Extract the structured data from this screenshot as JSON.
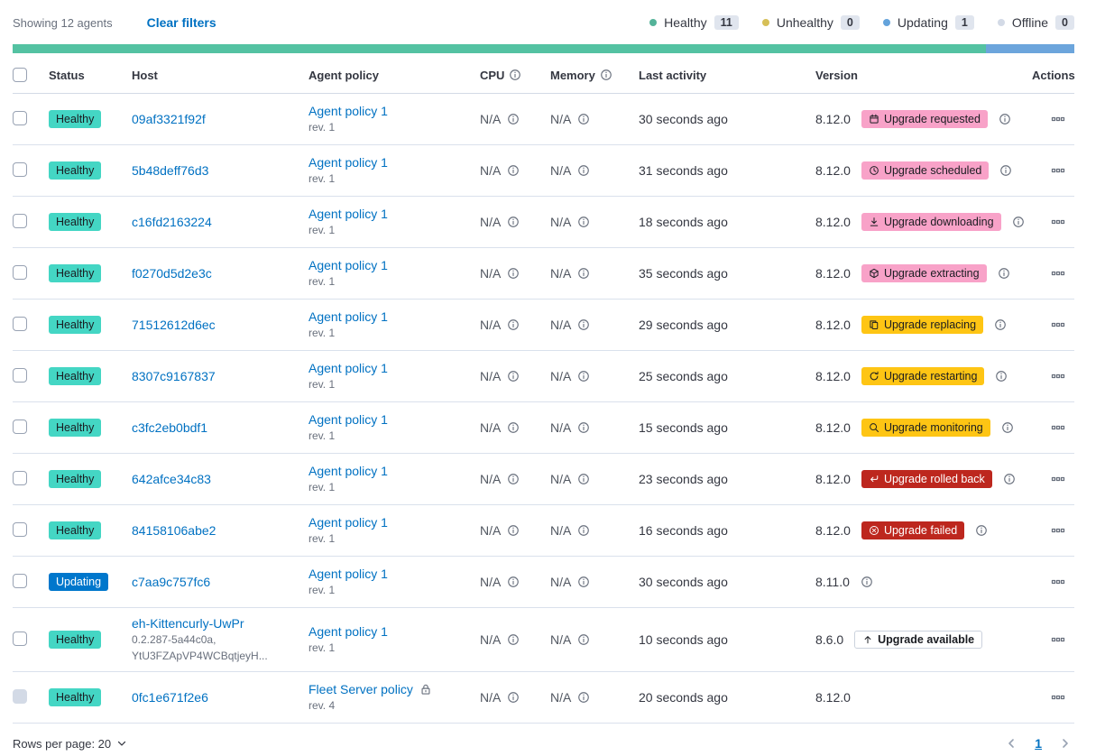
{
  "toolbar": {
    "showing": "Showing 12 agents",
    "clear_filters": "Clear filters"
  },
  "legend": {
    "items": [
      {
        "label": "Healthy",
        "count": "11",
        "color": "#54B399"
      },
      {
        "label": "Unhealthy",
        "count": "0",
        "color": "#D6BF57"
      },
      {
        "label": "Updating",
        "count": "1",
        "color": "#64A3DB"
      },
      {
        "label": "Offline",
        "count": "0",
        "color": "#D3DAE6"
      }
    ]
  },
  "status_bar": {
    "segments": [
      {
        "name": "healthy",
        "color": "#54C2A2",
        "percent": 91.7
      },
      {
        "name": "updating",
        "color": "#6CA5DC",
        "percent": 8.3
      }
    ]
  },
  "table": {
    "headers": {
      "status": "Status",
      "host": "Host",
      "policy": "Agent policy",
      "cpu": "CPU",
      "memory": "Memory",
      "last_activity": "Last activity",
      "version": "Version",
      "actions": "Actions"
    },
    "rows": [
      {
        "status": "Healthy",
        "status_variant": "success",
        "host": "09af3321f92f",
        "host_sub": [],
        "policy": "Agent policy 1",
        "policy_rev": "rev. 1",
        "policy_locked": false,
        "cpu": "N/A",
        "memory": "N/A",
        "last_activity": "30 seconds ago",
        "version": "8.12.0",
        "upgrade": {
          "label": "Upgrade requested",
          "variant": "accent",
          "icon": "calendar"
        },
        "version_info": true,
        "checkbox_disabled": false
      },
      {
        "status": "Healthy",
        "status_variant": "success",
        "host": "5b48deff76d3",
        "host_sub": [],
        "policy": "Agent policy 1",
        "policy_rev": "rev. 1",
        "policy_locked": false,
        "cpu": "N/A",
        "memory": "N/A",
        "last_activity": "31 seconds ago",
        "version": "8.12.0",
        "upgrade": {
          "label": "Upgrade scheduled",
          "variant": "accent",
          "icon": "clock"
        },
        "version_info": true,
        "checkbox_disabled": false
      },
      {
        "status": "Healthy",
        "status_variant": "success",
        "host": "c16fd2163224",
        "host_sub": [],
        "policy": "Agent policy 1",
        "policy_rev": "rev. 1",
        "policy_locked": false,
        "cpu": "N/A",
        "memory": "N/A",
        "last_activity": "18 seconds ago",
        "version": "8.12.0",
        "upgrade": {
          "label": "Upgrade downloading",
          "variant": "accent",
          "icon": "download"
        },
        "version_info": true,
        "checkbox_disabled": false
      },
      {
        "status": "Healthy",
        "status_variant": "success",
        "host": "f0270d5d2e3c",
        "host_sub": [],
        "policy": "Agent policy 1",
        "policy_rev": "rev. 1",
        "policy_locked": false,
        "cpu": "N/A",
        "memory": "N/A",
        "last_activity": "35 seconds ago",
        "version": "8.12.0",
        "upgrade": {
          "label": "Upgrade extracting",
          "variant": "accent",
          "icon": "package"
        },
        "version_info": true,
        "checkbox_disabled": false
      },
      {
        "status": "Healthy",
        "status_variant": "success",
        "host": "71512612d6ec",
        "host_sub": [],
        "policy": "Agent policy 1",
        "policy_rev": "rev. 1",
        "policy_locked": false,
        "cpu": "N/A",
        "memory": "N/A",
        "last_activity": "29 seconds ago",
        "version": "8.12.0",
        "upgrade": {
          "label": "Upgrade replacing",
          "variant": "warning",
          "icon": "copy"
        },
        "version_info": true,
        "checkbox_disabled": false
      },
      {
        "status": "Healthy",
        "status_variant": "success",
        "host": "8307c9167837",
        "host_sub": [],
        "policy": "Agent policy 1",
        "policy_rev": "rev. 1",
        "policy_locked": false,
        "cpu": "N/A",
        "memory": "N/A",
        "last_activity": "25 seconds ago",
        "version": "8.12.0",
        "upgrade": {
          "label": "Upgrade restarting",
          "variant": "warning",
          "icon": "refresh"
        },
        "version_info": true,
        "checkbox_disabled": false
      },
      {
        "status": "Healthy",
        "status_variant": "success",
        "host": "c3fc2eb0bdf1",
        "host_sub": [],
        "policy": "Agent policy 1",
        "policy_rev": "rev. 1",
        "policy_locked": false,
        "cpu": "N/A",
        "memory": "N/A",
        "last_activity": "15 seconds ago",
        "version": "8.12.0",
        "upgrade": {
          "label": "Upgrade monitoring",
          "variant": "warning",
          "icon": "inspect"
        },
        "version_info": true,
        "checkbox_disabled": false
      },
      {
        "status": "Healthy",
        "status_variant": "success",
        "host": "642afce34c83",
        "host_sub": [],
        "policy": "Agent policy 1",
        "policy_rev": "rev. 1",
        "policy_locked": false,
        "cpu": "N/A",
        "memory": "N/A",
        "last_activity": "23 seconds ago",
        "version": "8.12.0",
        "upgrade": {
          "label": "Upgrade rolled back",
          "variant": "danger",
          "icon": "return"
        },
        "version_info": true,
        "checkbox_disabled": false
      },
      {
        "status": "Healthy",
        "status_variant": "success",
        "host": "84158106abe2",
        "host_sub": [],
        "policy": "Agent policy 1",
        "policy_rev": "rev. 1",
        "policy_locked": false,
        "cpu": "N/A",
        "memory": "N/A",
        "last_activity": "16 seconds ago",
        "version": "8.12.0",
        "upgrade": {
          "label": "Upgrade failed",
          "variant": "danger",
          "icon": "error"
        },
        "version_info": true,
        "checkbox_disabled": false
      },
      {
        "status": "Updating",
        "status_variant": "primary",
        "host": "c7aa9c757fc6",
        "host_sub": [],
        "policy": "Agent policy 1",
        "policy_rev": "rev. 1",
        "policy_locked": false,
        "cpu": "N/A",
        "memory": "N/A",
        "last_activity": "30 seconds ago",
        "version": "8.11.0",
        "upgrade": null,
        "version_info": true,
        "checkbox_disabled": false
      },
      {
        "status": "Healthy",
        "status_variant": "success",
        "host": "eh-Kittencurly-UwPr",
        "host_sub": [
          "0.2.287-5a44c0a,",
          "YtU3FZApVP4WCBqtjeyH..."
        ],
        "policy": "Agent policy 1",
        "policy_rev": "rev. 1",
        "policy_locked": false,
        "cpu": "N/A",
        "memory": "N/A",
        "last_activity": "10 seconds ago",
        "version": "8.6.0",
        "upgrade": {
          "label": "Upgrade available",
          "variant": "hollow",
          "icon": "arrowUp"
        },
        "version_info": false,
        "checkbox_disabled": false
      },
      {
        "status": "Healthy",
        "status_variant": "success",
        "host": "0fc1e671f2e6",
        "host_sub": [],
        "policy": "Fleet Server policy",
        "policy_rev": "rev. 4",
        "policy_locked": true,
        "cpu": "N/A",
        "memory": "N/A",
        "last_activity": "20 seconds ago",
        "version": "8.12.0",
        "upgrade": null,
        "version_info": false,
        "checkbox_disabled": true
      }
    ]
  },
  "footer": {
    "rows_per_page": "Rows per page: 20",
    "page": "1"
  }
}
